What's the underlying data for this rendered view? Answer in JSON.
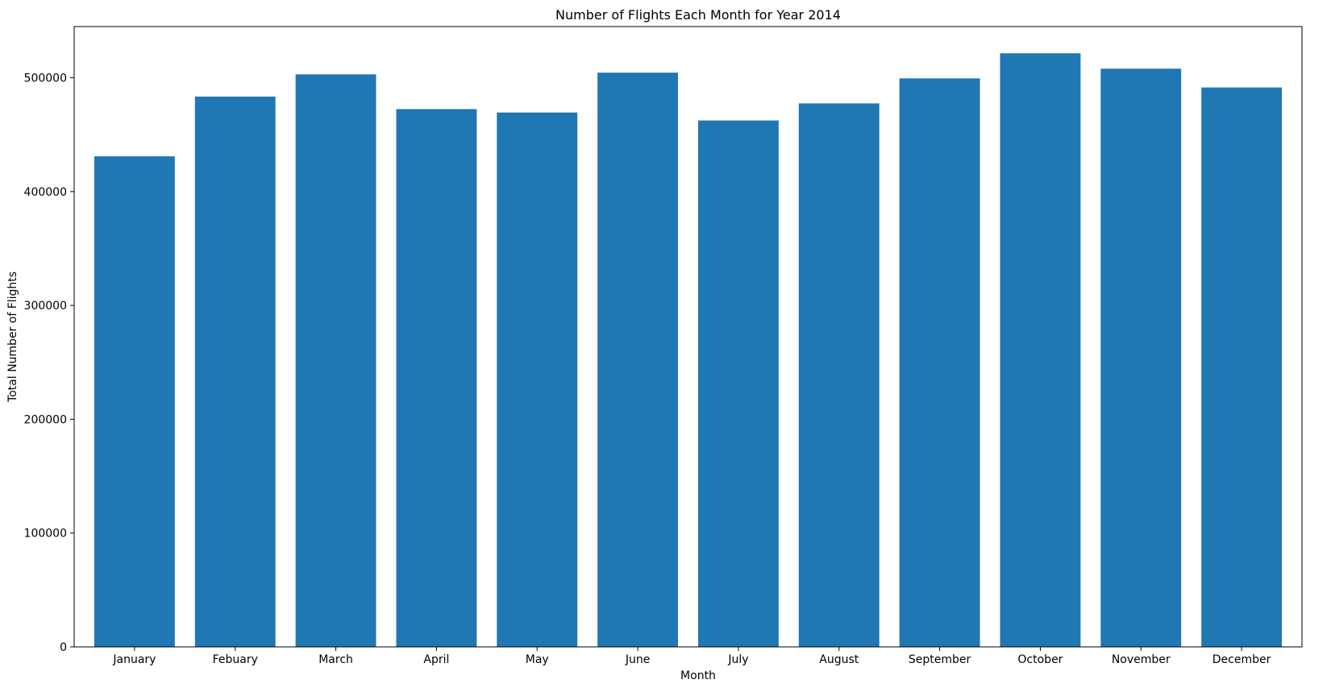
{
  "chart_data": {
    "type": "bar",
    "title": "Number of Flights Each Month for Year 2014",
    "xlabel": "Month",
    "ylabel": "Total Number of Flights",
    "categories": [
      "January",
      "Febuary",
      "March",
      "April",
      "May",
      "June",
      "July",
      "August",
      "September",
      "October",
      "November",
      "December"
    ],
    "values": [
      431000,
      483500,
      503000,
      472500,
      469500,
      504500,
      462500,
      477500,
      499500,
      521500,
      508000,
      491500
    ],
    "ylim": [
      0,
      545000
    ],
    "yticks": [
      0,
      100000,
      200000,
      300000,
      400000,
      500000
    ],
    "ytick_labels": [
      "0",
      "100000",
      "200000",
      "300000",
      "400000",
      "500000"
    ],
    "grid": false,
    "bar_color": "#1f77b4"
  }
}
